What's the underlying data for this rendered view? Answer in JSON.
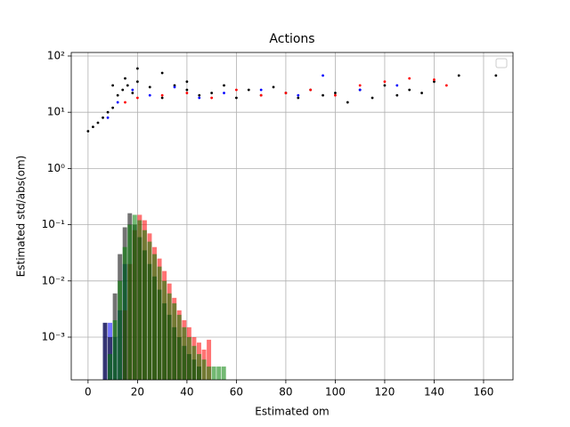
{
  "chart_data": {
    "type": "scatter",
    "title": "Actions",
    "x_label": "Estimated om",
    "y_label": "Estimated std/abs(om)",
    "log_y": true,
    "grid": true,
    "xlim": [
      -6.8,
      171.9
    ],
    "ylim": [
      0.000174,
      115.6
    ],
    "xticks": [
      0,
      20,
      40,
      60,
      80,
      100,
      120,
      140,
      160
    ],
    "yticks": [
      {
        "value": 0.001,
        "label": "10⁻³"
      },
      {
        "value": 0.01,
        "label": "10⁻²"
      },
      {
        "value": 0.1,
        "label": "10⁻¹"
      },
      {
        "value": 1,
        "label": "10⁰"
      },
      {
        "value": 10,
        "label": "10¹"
      },
      {
        "value": 100,
        "label": "10²"
      }
    ],
    "series": [
      {
        "type": "histogram",
        "color": "#0000ff",
        "bins": [
          6,
          8,
          10,
          12,
          14,
          16
        ],
        "values": [
          0.0018,
          0.0018,
          0.001,
          0.003,
          0.02
        ]
      },
      {
        "type": "histogram",
        "color": "#ff0000",
        "bins": [
          14,
          16,
          18,
          20,
          22,
          24,
          26,
          28,
          30,
          32,
          34,
          36,
          38,
          40,
          42,
          44,
          46,
          48,
          50
        ],
        "values": [
          0.003,
          0.02,
          0.08,
          0.15,
          0.12,
          0.07,
          0.04,
          0.025,
          0.015,
          0.009,
          0.005,
          0.003,
          0.002,
          0.0015,
          0.001,
          0.0008,
          0.0006,
          0.0009
        ]
      },
      {
        "type": "histogram",
        "color": "#000000",
        "bins": [
          6,
          8,
          10,
          12,
          14,
          16,
          18,
          20,
          22,
          24,
          26,
          28,
          30,
          32,
          34,
          36,
          38,
          40,
          42,
          44,
          46
        ],
        "values": [
          0.0018,
          0.001,
          0.006,
          0.03,
          0.09,
          0.16,
          0.1,
          0.06,
          0.035,
          0.02,
          0.012,
          0.007,
          0.004,
          0.0025,
          0.0015,
          0.001,
          0.0007,
          0.0005,
          0.0004,
          0.0003
        ]
      },
      {
        "type": "histogram",
        "color": "#008000",
        "bins": [
          8,
          10,
          12,
          14,
          16,
          18,
          20,
          22,
          24,
          26,
          28,
          30,
          32,
          34,
          36,
          38,
          40,
          42,
          44,
          46,
          48,
          50,
          52,
          54,
          56
        ],
        "values": [
          0.0005,
          0.002,
          0.01,
          0.04,
          0.1,
          0.15,
          0.12,
          0.08,
          0.05,
          0.03,
          0.018,
          0.01,
          0.006,
          0.004,
          0.0025,
          0.0015,
          0.001,
          0.0007,
          0.0005,
          0.0004,
          0.0003,
          0.0003,
          0.0003,
          0.0003
        ]
      },
      {
        "type": "points",
        "color": "#000000",
        "x": [
          0,
          2,
          4,
          6,
          8,
          10,
          12,
          14,
          16,
          18,
          20,
          25,
          30,
          35,
          40,
          45,
          50,
          55,
          60,
          65,
          70,
          75,
          80,
          85,
          90,
          95,
          100,
          105,
          110,
          115,
          120,
          125,
          130,
          135,
          140,
          150,
          165,
          10,
          15,
          20,
          30,
          40
        ],
        "values": [
          4.6,
          5.5,
          6.5,
          8,
          10,
          12,
          20,
          25,
          30,
          22,
          35,
          28,
          18,
          30,
          25,
          20,
          22,
          30,
          18,
          25,
          20,
          28,
          22,
          18,
          25,
          20,
          22,
          15,
          25,
          18,
          30,
          20,
          25,
          22,
          35,
          45,
          45,
          30,
          40,
          60,
          50,
          35
        ]
      },
      {
        "type": "points",
        "color": "#0000ff",
        "x": [
          8,
          12,
          18,
          25,
          35,
          45,
          55,
          70,
          85,
          95,
          110,
          125
        ],
        "values": [
          8,
          15,
          25,
          20,
          28,
          18,
          22,
          25,
          20,
          45,
          25,
          30
        ]
      },
      {
        "type": "points",
        "color": "#ff0000",
        "x": [
          15,
          20,
          30,
          40,
          50,
          60,
          70,
          80,
          90,
          100,
          110,
          120,
          130,
          140,
          145
        ],
        "values": [
          15,
          18,
          20,
          22,
          18,
          25,
          20,
          22,
          25,
          20,
          30,
          35,
          40,
          38,
          30
        ]
      }
    ]
  }
}
